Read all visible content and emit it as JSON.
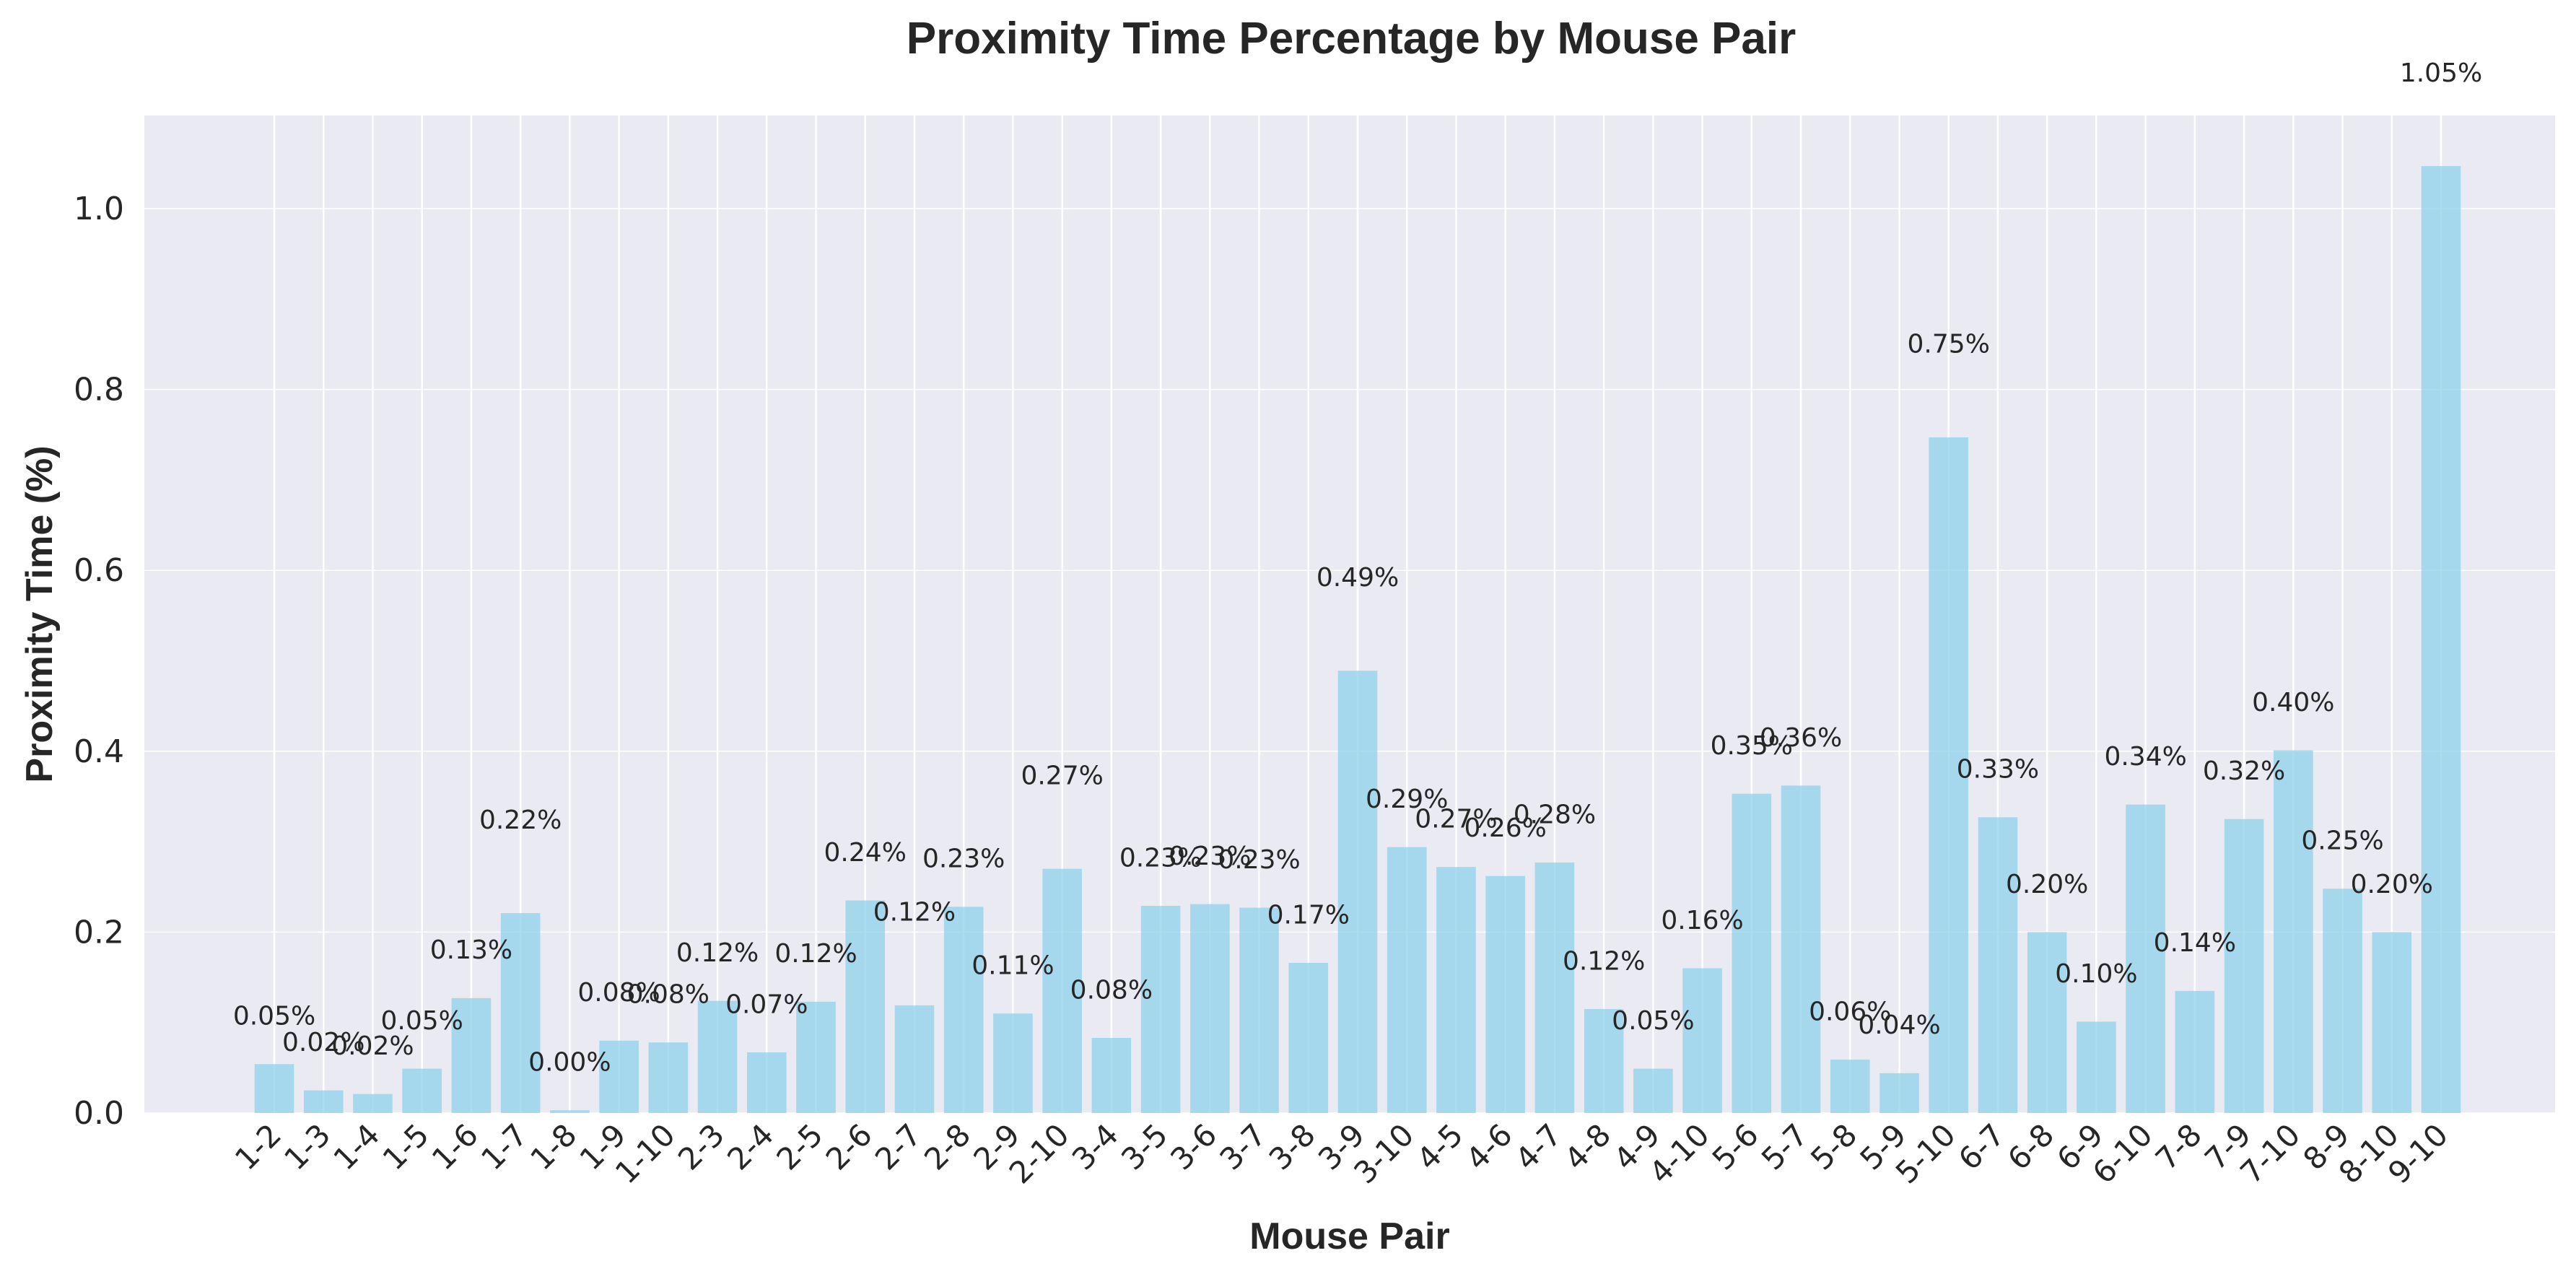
{
  "chart_data": {
    "type": "bar",
    "title": "Proximity Time Percentage by Mouse Pair",
    "xlabel": "Mouse Pair",
    "ylabel": "Proximity Time (%)",
    "ylim": [
      0,
      1.1
    ],
    "yticks": [
      "0.0",
      "0.2",
      "0.4",
      "0.6",
      "0.8",
      "1.0"
    ],
    "grid": true,
    "bar_color": "#87CEEB",
    "plot_background": "#EAEAF2",
    "categories": [
      "1-2",
      "1-3",
      "1-4",
      "1-5",
      "1-6",
      "1-7",
      "1-8",
      "1-9",
      "1-10",
      "2-3",
      "2-4",
      "2-5",
      "2-6",
      "2-7",
      "2-8",
      "2-9",
      "2-10",
      "3-4",
      "3-5",
      "3-6",
      "3-7",
      "3-8",
      "3-9",
      "3-10",
      "4-5",
      "4-6",
      "4-7",
      "4-8",
      "4-9",
      "4-10",
      "5-6",
      "5-7",
      "5-8",
      "5-9",
      "5-10",
      "6-7",
      "6-8",
      "6-9",
      "6-10",
      "7-8",
      "7-9",
      "7-10",
      "8-9",
      "8-10",
      "9-10"
    ],
    "values": [
      0.054,
      0.025,
      0.021,
      0.049,
      0.127,
      0.221,
      0.003,
      0.08,
      0.078,
      0.124,
      0.067,
      0.123,
      0.235,
      0.119,
      0.228,
      0.11,
      0.27,
      0.083,
      0.229,
      0.231,
      0.227,
      0.166,
      0.489,
      0.294,
      0.272,
      0.262,
      0.277,
      0.115,
      0.049,
      0.16,
      0.353,
      0.362,
      0.059,
      0.044,
      0.747,
      0.327,
      0.2,
      0.101,
      0.341,
      0.135,
      0.325,
      0.401,
      0.248,
      0.2,
      1.047
    ],
    "data_labels": [
      "0.05%",
      "0.02%",
      "0.02%",
      "0.05%",
      "0.13%",
      "0.22%",
      "0.00%",
      "0.08%",
      "0.08%",
      "0.12%",
      "0.07%",
      "0.12%",
      "0.24%",
      "0.12%",
      "0.23%",
      "0.11%",
      "0.27%",
      "0.08%",
      "0.23%",
      "0.23%",
      "0.23%",
      "0.17%",
      "0.49%",
      "0.29%",
      "0.27%",
      "0.26%",
      "0.28%",
      "0.12%",
      "0.05%",
      "0.16%",
      "0.35%",
      "0.36%",
      "0.06%",
      "0.04%",
      "0.75%",
      "0.33%",
      "0.20%",
      "0.10%",
      "0.34%",
      "0.14%",
      "0.32%",
      "0.40%",
      "0.25%",
      "0.20%",
      "1.05%"
    ],
    "label_offsets": [
      0.05,
      0.05,
      0.05,
      0.05,
      0.05,
      0.1,
      0.05,
      0.05,
      0.05,
      0.05,
      0.05,
      0.05,
      0.05,
      0.1,
      0.05,
      0.05,
      0.1,
      0.05,
      0.05,
      0.05,
      0.05,
      0.05,
      0.1,
      0.05,
      0.05,
      0.05,
      0.05,
      0.05,
      0.05,
      0.05,
      0.05,
      0.05,
      0.05,
      0.05,
      0.1,
      0.05,
      0.05,
      0.05,
      0.05,
      0.05,
      0.05,
      0.05,
      0.05,
      0.05,
      0.1
    ]
  }
}
